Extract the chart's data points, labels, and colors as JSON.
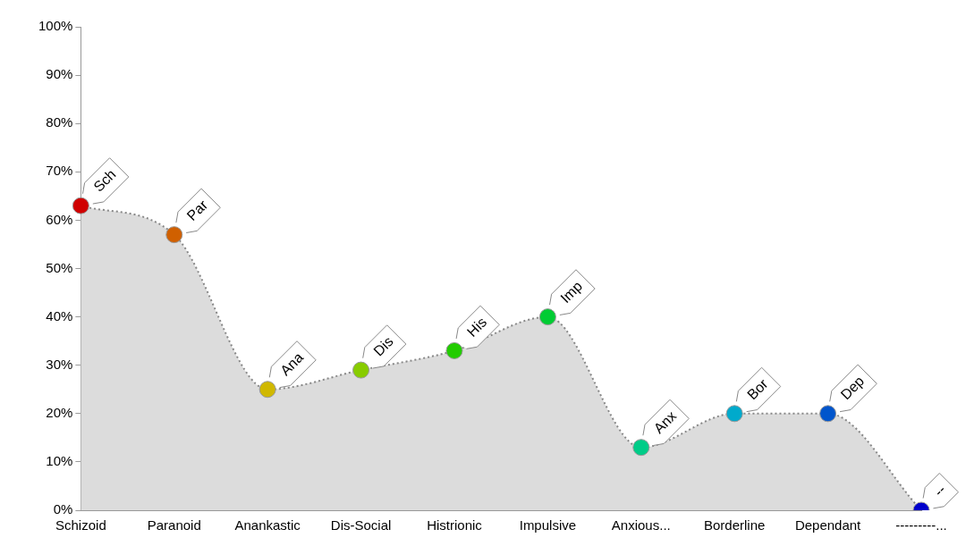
{
  "chart_data": {
    "type": "area",
    "categories": [
      "Schizoid",
      "Paranoid",
      "Anankastic",
      "Dis-Social",
      "Histrionic",
      "Impulsive",
      "Anxious...",
      "Borderline",
      "Dependant",
      "---------..."
    ],
    "series": [
      {
        "color": "#dcdcdc",
        "colors": [
          "#d00000",
          "#d06000",
          "#d0b800",
          "#88cc00",
          "#22cc00",
          "#00cc33",
          "#00cc88",
          "#00aacc",
          "#0055cc",
          "#0000cc"
        ],
        "values": [
          63,
          57,
          25,
          29,
          33,
          40,
          13,
          20,
          20,
          0
        ]
      }
    ],
    "ylim": [
      0,
      100
    ],
    "yticks": [
      {
        "value": 0,
        "label": "0%"
      },
      {
        "value": 10,
        "label": "10%"
      },
      {
        "value": 20,
        "label": "20%"
      },
      {
        "value": 30,
        "label": "30%"
      },
      {
        "value": 40,
        "label": "40%"
      },
      {
        "value": 50,
        "label": "50%"
      },
      {
        "value": 60,
        "label": "60%"
      },
      {
        "value": 70,
        "label": "70%"
      },
      {
        "value": 80,
        "label": "80%"
      },
      {
        "value": 90,
        "label": "90%"
      },
      {
        "value": 100,
        "label": "100%"
      }
    ],
    "grid": false,
    "legend": false,
    "marker": "circle",
    "line_style": "dotted",
    "annotations": [
      {
        "text": "Sch",
        "x": "Schizoid",
        "y": 63
      },
      {
        "text": "Par",
        "x": "Paranoid",
        "y": 57
      },
      {
        "text": "Ana",
        "x": "Anankastic",
        "y": 25
      },
      {
        "text": "Dis",
        "x": "Dis-Social",
        "y": 29
      },
      {
        "text": "His",
        "x": "Histrionic",
        "y": 33
      },
      {
        "text": "Imp",
        "x": "Impulsive",
        "y": 40
      },
      {
        "text": "Anx",
        "x": "Anxious...",
        "y": 13
      },
      {
        "text": "Bor",
        "x": "Borderline",
        "y": 20
      },
      {
        "text": "Dep",
        "x": "Dependant",
        "y": 20
      },
      {
        "text": "--",
        "x": "---------...",
        "y": 0
      }
    ]
  }
}
